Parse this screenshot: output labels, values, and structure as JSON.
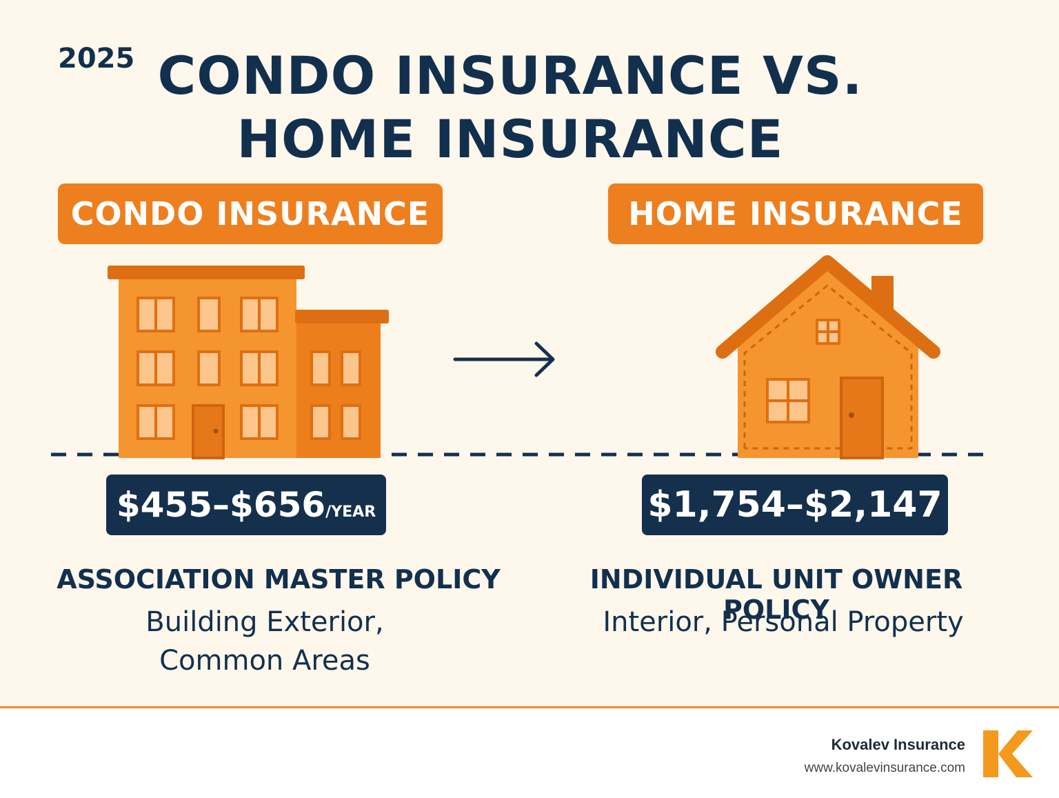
{
  "header": {
    "year": "2025",
    "title_line1": "CONDO INSURANCE VS.",
    "title_line2": "HOME INSURANCE"
  },
  "condo": {
    "label": "CONDO INSURANCE",
    "price": "$455–$656",
    "price_unit": "/YEAR",
    "policy": "ASSOCIATION MASTER POLICY",
    "coverage_line1": "Building Exterior,",
    "coverage_line2": "Common Areas"
  },
  "home": {
    "label": "HOME INSURANCE",
    "price": "$1,754–$2,147",
    "policy": "INDIVIDUAL UNIT OWNER POLICY",
    "coverage": "Interior, Personal Property"
  },
  "icons": {
    "condo": "apartment-building-icon",
    "home": "house-icon",
    "comparison": "arrow-right-icon",
    "logo": "k-logo-icon"
  },
  "colors": {
    "accent": "#ee7f1e",
    "navy": "#15304d",
    "background": "#fdf7ec"
  },
  "footer": {
    "company": "Kovalev Insurance",
    "url": "www.kovalevinsurance.com"
  }
}
